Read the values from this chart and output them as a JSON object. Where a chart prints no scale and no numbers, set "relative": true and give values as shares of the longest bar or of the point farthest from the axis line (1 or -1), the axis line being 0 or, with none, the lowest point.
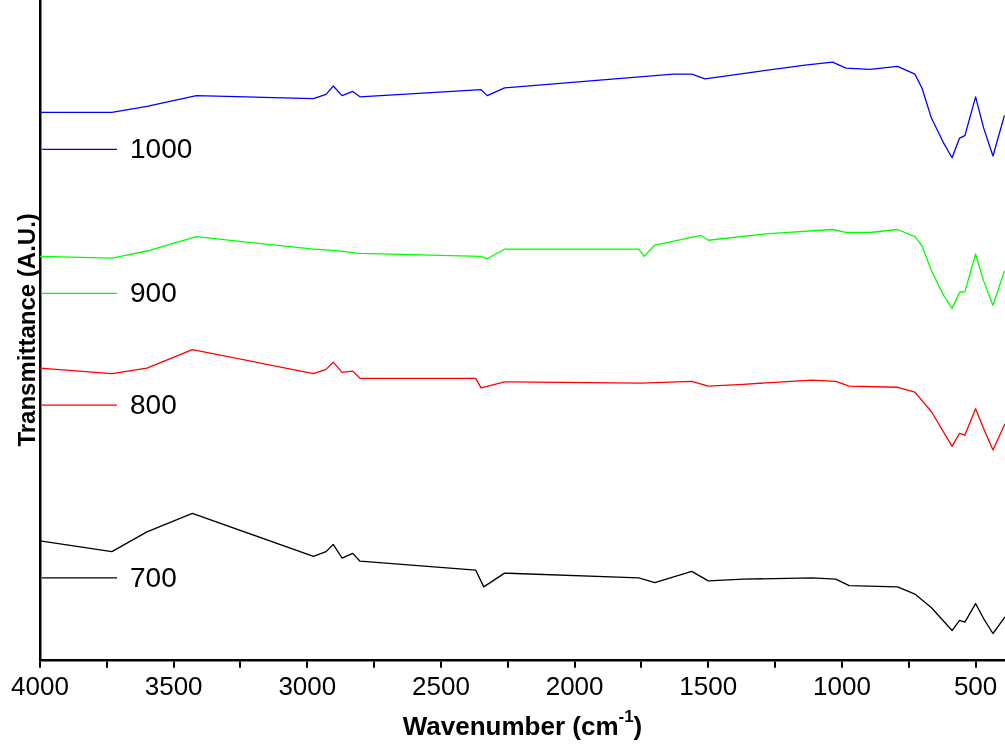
{
  "chart_data": {
    "type": "line",
    "xlabel": "Wavenumber (cm$^{-1}$)",
    "ylabel": "Transmittance (A.U.)",
    "relative": true,
    "xlim": [
      4000,
      390
    ],
    "xticks": [
      4000,
      {
        "value": 3750,
        "label": null
      },
      3500,
      {
        "value": 3250,
        "label": null
      },
      3000,
      {
        "value": 2750,
        "label": null
      },
      2500,
      {
        "value": 2250,
        "label": null
      },
      2000,
      {
        "value": 1750,
        "label": null
      },
      1500,
      {
        "value": 1250,
        "label": null
      },
      1000,
      {
        "value": 750,
        "label": null
      },
      500
    ],
    "grid": false,
    "legend": "left",
    "marker": "none",
    "line_style": "solid",
    "series": [
      {
        "name": "1000",
        "color": "#0000ff",
        "x": [
          4000,
          3731,
          3600,
          3415,
          2977,
          2930,
          2903,
          2870,
          2830,
          2803,
          2350,
          2327,
          2262,
          1631,
          1562,
          1512,
          1304,
          1138,
          1035,
          985,
          896,
          792,
          727,
          700,
          665,
          620,
          588,
          560,
          540,
          500,
          470,
          435,
          392
        ],
        "values": [
          0.916,
          0.916,
          0.926,
          0.944,
          0.939,
          0.946,
          0.96,
          0.944,
          0.951,
          0.942,
          0.954,
          0.944,
          0.957,
          0.98,
          0.98,
          0.972,
          0.985,
          0.995,
          1.0,
          0.99,
          0.988,
          0.993,
          0.98,
          0.956,
          0.906,
          0.865,
          0.84,
          0.873,
          0.877,
          0.942,
          0.89,
          0.843,
          0.911
        ]
      },
      {
        "name": "900",
        "color": "#00ff00",
        "x": [
          4000,
          3731,
          3600,
          3415,
          2977,
          2903,
          2803,
          2350,
          2327,
          2262,
          1760,
          1740,
          1700,
          1527,
          1500,
          1304,
          1035,
          985,
          896,
          792,
          727,
          700,
          665,
          620,
          588,
          560,
          540,
          500,
          470,
          435,
          392
        ],
        "values": [
          0.675,
          0.672,
          0.684,
          0.708,
          0.687,
          0.685,
          0.68,
          0.675,
          0.671,
          0.687,
          0.687,
          0.675,
          0.694,
          0.71,
          0.702,
          0.712,
          0.72,
          0.715,
          0.715,
          0.72,
          0.708,
          0.692,
          0.651,
          0.61,
          0.588,
          0.615,
          0.616,
          0.679,
          0.634,
          0.593,
          0.651
        ]
      },
      {
        "name": "800",
        "color": "#ff0000",
        "x": [
          4000,
          3731,
          3600,
          3430,
          2977,
          2930,
          2903,
          2870,
          2830,
          2803,
          2370,
          2350,
          2262,
          1750,
          1562,
          1500,
          1369,
          1112,
          1023,
          973,
          792,
          727,
          665,
          588,
          560,
          540,
          500,
          470,
          435,
          390
        ],
        "values": [
          0.488,
          0.479,
          0.488,
          0.519,
          0.479,
          0.486,
          0.498,
          0.481,
          0.483,
          0.471,
          0.471,
          0.455,
          0.465,
          0.463,
          0.466,
          0.458,
          0.461,
          0.468,
          0.466,
          0.458,
          0.456,
          0.448,
          0.415,
          0.357,
          0.379,
          0.376,
          0.42,
          0.387,
          0.351,
          0.395
        ]
      },
      {
        "name": "700",
        "color": "#000000",
        "x": [
          4000,
          3731,
          3600,
          3430,
          2977,
          2930,
          2903,
          2870,
          2830,
          2803,
          2370,
          2340,
          2262,
          1760,
          1700,
          1562,
          1500,
          1369,
          1112,
          1023,
          973,
          792,
          727,
          665,
          588,
          560,
          540,
          500,
          470,
          435,
          390
        ],
        "values": [
          0.199,
          0.181,
          0.214,
          0.245,
          0.173,
          0.181,
          0.193,
          0.17,
          0.178,
          0.165,
          0.15,
          0.122,
          0.145,
          0.137,
          0.129,
          0.148,
          0.132,
          0.135,
          0.137,
          0.135,
          0.124,
          0.122,
          0.11,
          0.087,
          0.049,
          0.066,
          0.063,
          0.094,
          0.069,
          0.044,
          0.072
        ]
      }
    ]
  }
}
